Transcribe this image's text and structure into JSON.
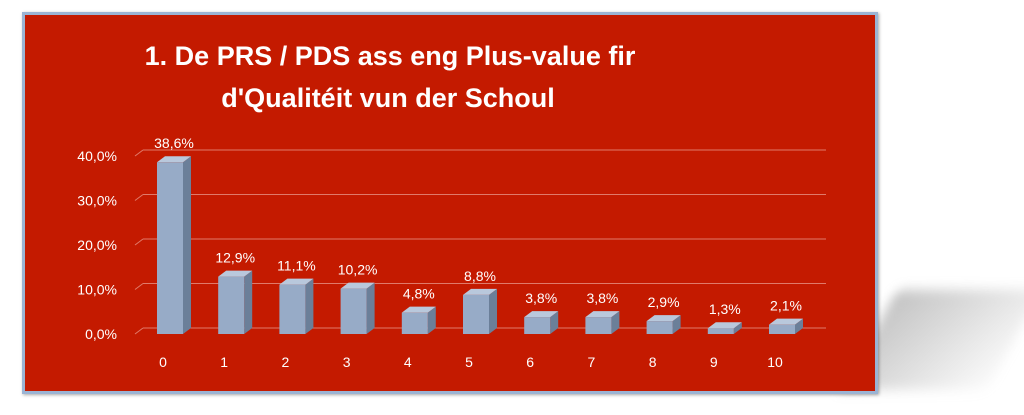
{
  "chart_data": {
    "type": "bar",
    "title_lines": [
      "1. De PRS / PDS ass eng Plus-value fir",
      "d'Qualitéit vun der Schoul"
    ],
    "categories": [
      "0",
      "1",
      "2",
      "3",
      "4",
      "5",
      "6",
      "7",
      "8",
      "9",
      "10"
    ],
    "values": [
      38.6,
      12.9,
      11.1,
      10.2,
      4.8,
      8.8,
      3.8,
      3.8,
      2.9,
      1.3,
      2.1
    ],
    "data_labels": [
      "38,6%",
      "12,9%",
      "11,1%",
      "10,2%",
      "4,8%",
      "8,8%",
      "3,8%",
      "3,8%",
      "2,9%",
      "1,3%",
      "2,1%"
    ],
    "ylim": [
      0,
      40
    ],
    "yticks": [
      0,
      10,
      20,
      30,
      40
    ],
    "ytick_labels": [
      "0,0%",
      "10,0%",
      "20,0%",
      "30,0%",
      "40,0%"
    ],
    "xlabel": "",
    "ylabel": "",
    "grid": true,
    "legend": "none"
  },
  "colors": {
    "background": "#c41a00",
    "border": "#9bb4d4",
    "bar_front": "#97abc7",
    "bar_side": "#6b7f99",
    "bar_top": "#b9c8dc",
    "gridline": "#e07a6a",
    "text": "#ffffff"
  }
}
